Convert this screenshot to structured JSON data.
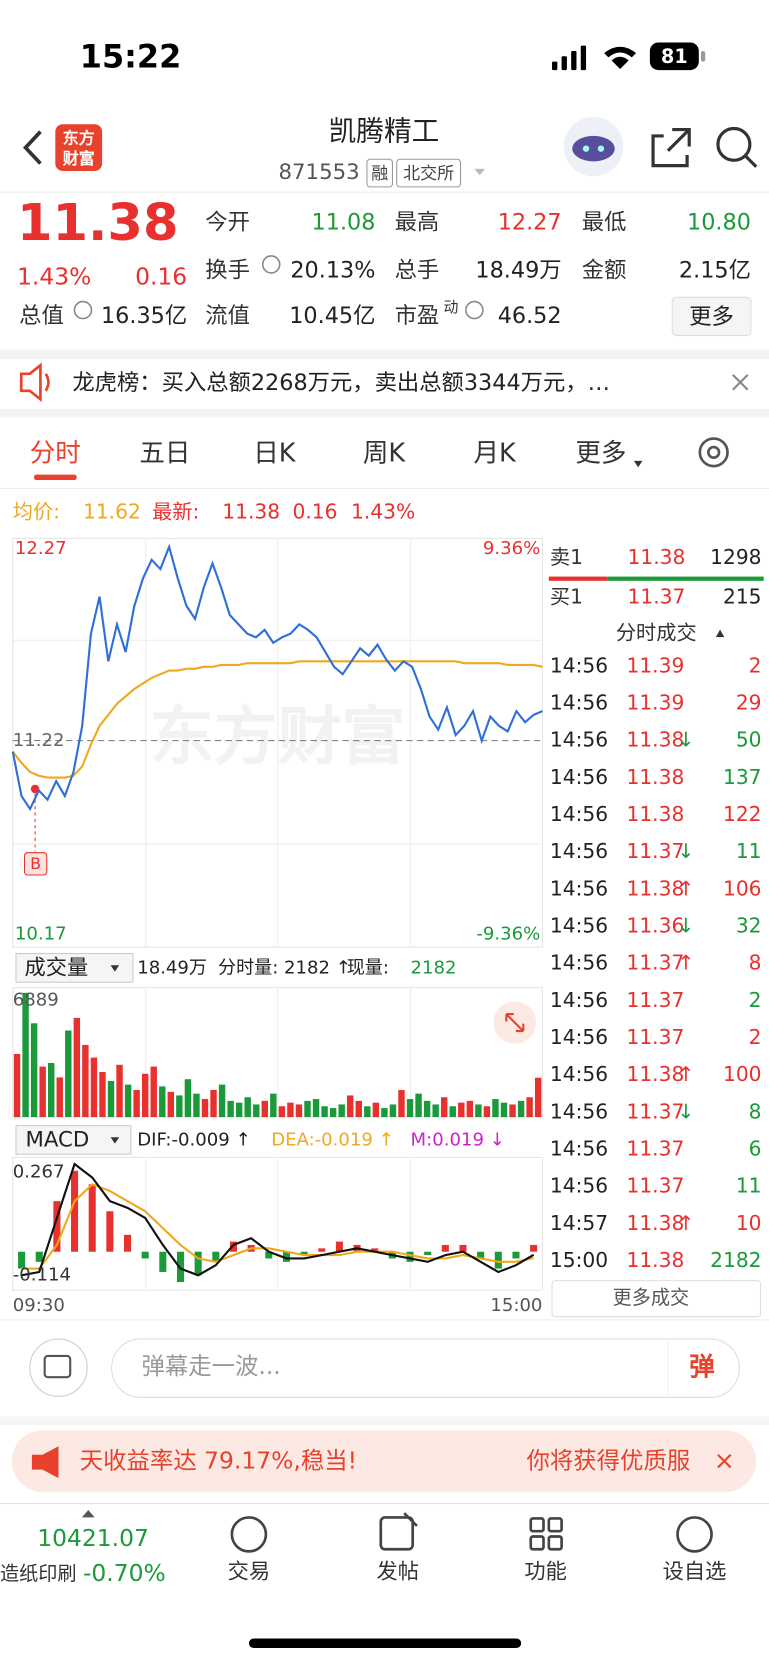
{
  "status": {
    "time": "15:22",
    "battery": "81"
  },
  "header": {
    "logo": [
      "东方",
      "财富"
    ],
    "title": "凯腾精工",
    "code": "871553",
    "tags": [
      "融",
      "北交所"
    ]
  },
  "quote": {
    "price": "11.38",
    "change_pct": "1.43%",
    "change": "0.16",
    "more": "更多",
    "fields": [
      {
        "label": "今开",
        "value": "11.08",
        "color": "#1a9a3a"
      },
      {
        "label": "最高",
        "value": "12.27",
        "color": "#e8312f"
      },
      {
        "label": "最低",
        "value": "10.80",
        "color": "#1a9a3a"
      },
      {
        "label": "换手",
        "value": "20.13%",
        "color": "#222222"
      },
      {
        "label": "总手",
        "value": "18.49万",
        "color": "#222222"
      },
      {
        "label": "金额",
        "value": "2.15亿",
        "color": "#222222"
      },
      {
        "label": "总值",
        "value": "16.35亿",
        "color": "#222222"
      },
      {
        "label": "流值",
        "value": "10.45亿",
        "color": "#222222"
      },
      {
        "label": "市盈",
        "sup": "动",
        "value": "46.52",
        "color": "#222222"
      }
    ]
  },
  "notice": "龙虎榜：买入总额2268万元，卖出总额3344万元，…",
  "tabs": [
    "分时",
    "五日",
    "日K",
    "周K",
    "月K",
    "更多"
  ],
  "legend": {
    "avg_label": "均价:",
    "avg": "11.62",
    "last_label": "最新:",
    "last": "11.38",
    "change": "0.16",
    "pct": "1.43%"
  },
  "chart": {
    "watermark": "东方财富",
    "time_start": "09:30",
    "time_end": "15:00",
    "price": {
      "ylim": [
        10.17,
        12.27
      ],
      "ref": 11.22,
      "pct_top": "9.36%",
      "pct_bottom": "-9.36%",
      "color": "#2f6fd6",
      "avg_color": "#f0a81c",
      "values": [
        11.16,
        10.92,
        10.85,
        10.95,
        10.9,
        11.0,
        10.92,
        11.05,
        11.3,
        11.8,
        12.0,
        11.65,
        11.85,
        11.7,
        11.95,
        12.1,
        12.2,
        12.15,
        12.27,
        12.1,
        11.95,
        11.88,
        12.05,
        12.18,
        12.05,
        11.9,
        11.85,
        11.8,
        11.78,
        11.82,
        11.75,
        11.78,
        11.8,
        11.85,
        11.82,
        11.78,
        11.7,
        11.62,
        11.58,
        11.65,
        11.72,
        11.68,
        11.74,
        11.66,
        11.6,
        11.65,
        11.62,
        11.5,
        11.35,
        11.28,
        11.4,
        11.25,
        11.3,
        11.38,
        11.22,
        11.35,
        11.3,
        11.27,
        11.38,
        11.32,
        11.36,
        11.38
      ],
      "avg": [
        11.16,
        11.1,
        11.05,
        11.03,
        11.02,
        11.02,
        11.02,
        11.03,
        11.08,
        11.2,
        11.3,
        11.36,
        11.42,
        11.46,
        11.5,
        11.53,
        11.56,
        11.58,
        11.6,
        11.6,
        11.61,
        11.61,
        11.62,
        11.62,
        11.63,
        11.63,
        11.63,
        11.64,
        11.64,
        11.64,
        11.64,
        11.64,
        11.64,
        11.65,
        11.65,
        11.65,
        11.65,
        11.65,
        11.65,
        11.65,
        11.65,
        11.65,
        11.65,
        11.65,
        11.65,
        11.65,
        11.65,
        11.65,
        11.65,
        11.65,
        11.65,
        11.65,
        11.64,
        11.64,
        11.64,
        11.64,
        11.64,
        11.63,
        11.63,
        11.63,
        11.63,
        11.62
      ]
    },
    "volume": {
      "label": "成交量",
      "total": "18.49万",
      "minute": "分时量: 2182 ↑",
      "current_label": "现量:",
      "current": "2182",
      "ylim": [
        0,
        6889
      ],
      "values": [
        3500,
        6889,
        5200,
        2800,
        3000,
        2200,
        4800,
        5500,
        4000,
        3300,
        2500,
        2000,
        2900,
        1800,
        1500,
        2400,
        2800,
        1700,
        1400,
        1200,
        2100,
        1300,
        1000,
        1500,
        1800,
        900,
        800,
        1100,
        700,
        900,
        1300,
        600,
        800,
        700,
        900,
        1000,
        600,
        500,
        700,
        1200,
        900,
        600,
        800,
        500,
        700,
        1500,
        1000,
        1300,
        900,
        700,
        1100,
        600,
        800,
        900,
        700,
        600,
        1000,
        800,
        700,
        900,
        1100,
        2182
      ]
    },
    "macd": {
      "label": "MACD",
      "dif_label": "DIF:-0.009 ↑",
      "dea_label": "DEA:-0.019 ↑",
      "m_label": "M:0.019 ↓",
      "ylim": [
        -0.114,
        0.267
      ],
      "hist": [
        -0.05,
        -0.03,
        0.15,
        0.24,
        0.2,
        0.12,
        0.05,
        -0.02,
        -0.06,
        -0.09,
        -0.07,
        -0.03,
        0.03,
        0.02,
        -0.02,
        -0.03,
        -0.01,
        0.01,
        0.03,
        0.02,
        0.01,
        -0.02,
        -0.03,
        -0.01,
        0.02,
        0.02,
        -0.02,
        -0.05,
        -0.02,
        0.02
      ],
      "dif": [
        -0.07,
        -0.06,
        0.1,
        0.26,
        0.22,
        0.15,
        0.13,
        0.1,
        0.02,
        -0.05,
        -0.07,
        -0.04,
        0.02,
        0.04,
        0.0,
        -0.02,
        -0.02,
        -0.01,
        0.0,
        0.01,
        0.0,
        -0.01,
        -0.02,
        -0.03,
        -0.01,
        0.0,
        -0.03,
        -0.06,
        -0.04,
        -0.009
      ],
      "dea": [
        -0.05,
        -0.05,
        0.02,
        0.15,
        0.2,
        0.18,
        0.15,
        0.12,
        0.07,
        0.02,
        -0.02,
        -0.03,
        -0.01,
        0.01,
        0.01,
        0.0,
        -0.01,
        -0.01,
        -0.01,
        0.0,
        0.0,
        0.0,
        -0.01,
        -0.02,
        -0.02,
        -0.01,
        -0.02,
        -0.03,
        -0.03,
        -0.019
      ]
    }
  },
  "book": {
    "ask": {
      "label": "卖1",
      "price": "11.38",
      "volume": "1298"
    },
    "bid": {
      "label": "买1",
      "price": "11.37",
      "volume": "215"
    }
  },
  "trades": {
    "title": "分时成交",
    "more": "更多成交",
    "rows": [
      {
        "time": "14:56",
        "price": "11.39",
        "volume": "2",
        "color": "#e8312f"
      },
      {
        "time": "14:56",
        "price": "11.39",
        "volume": "29",
        "color": "#e8312f"
      },
      {
        "time": "14:56",
        "price": "11.38",
        "arrow": "↓",
        "volume": "50",
        "color": "#1a9a3a"
      },
      {
        "time": "14:56",
        "price": "11.38",
        "volume": "137",
        "color": "#1a9a3a"
      },
      {
        "time": "14:56",
        "price": "11.38",
        "volume": "122",
        "color": "#e8312f"
      },
      {
        "time": "14:56",
        "price": "11.37",
        "arrow": "↓",
        "volume": "11",
        "color": "#1a9a3a"
      },
      {
        "time": "14:56",
        "price": "11.38",
        "arrow": "↑",
        "volume": "106",
        "color": "#e8312f"
      },
      {
        "time": "14:56",
        "price": "11.36",
        "arrow": "↓",
        "volume": "32",
        "color": "#1a9a3a"
      },
      {
        "time": "14:56",
        "price": "11.37",
        "arrow": "↑",
        "volume": "8",
        "color": "#e8312f"
      },
      {
        "time": "14:56",
        "price": "11.37",
        "volume": "2",
        "color": "#1a9a3a"
      },
      {
        "time": "14:56",
        "price": "11.37",
        "volume": "2",
        "color": "#e8312f"
      },
      {
        "time": "14:56",
        "price": "11.38",
        "arrow": "↑",
        "volume": "100",
        "color": "#e8312f"
      },
      {
        "time": "14:56",
        "price": "11.37",
        "arrow": "↓",
        "volume": "8",
        "color": "#1a9a3a"
      },
      {
        "time": "14:56",
        "price": "11.37",
        "volume": "6",
        "color": "#1a9a3a"
      },
      {
        "time": "14:56",
        "price": "11.37",
        "volume": "11",
        "color": "#1a9a3a"
      },
      {
        "time": "14:57",
        "price": "11.38",
        "arrow": "↑",
        "volume": "10",
        "color": "#e8312f"
      },
      {
        "time": "15:00",
        "price": "11.38",
        "volume": "2182",
        "color": "#1a9a3a"
      }
    ]
  },
  "input": {
    "placeholder": "弹幕走一波...",
    "button": "弹"
  },
  "ad": {
    "left": "天收益率达 79.17%,稳当!",
    "right": "你将获得优质服"
  },
  "nav": {
    "index": "10421.07",
    "sector": "造纸印刷",
    "sector_pct": "-0.70%",
    "items": [
      "交易",
      "发帖",
      "功能",
      "设自选"
    ]
  }
}
